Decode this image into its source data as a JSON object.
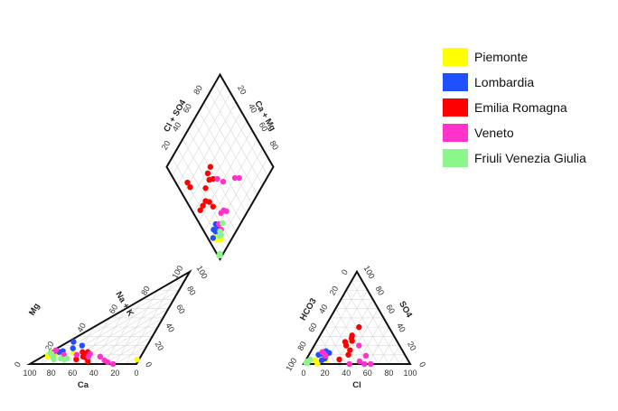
{
  "chart_data": {
    "type": "piper",
    "title": "",
    "legend": {
      "placement": "top-right",
      "entries": [
        {
          "name": "Piemonte",
          "color": "#ffff00"
        },
        {
          "name": "Lombardia",
          "color": "#1f4fff"
        },
        {
          "name": "Emilia Romagna",
          "color": "#ff0000"
        },
        {
          "name": "Veneto",
          "color": "#ff33cc"
        },
        {
          "name": "Friuli Venezia Giulia",
          "color": "#8cf58c"
        }
      ]
    },
    "cation_triangle": {
      "axes": {
        "bottom": "Ca",
        "left": "Mg",
        "right": "Na + K"
      },
      "bottom_ticks": [
        "100",
        "80",
        "60",
        "40",
        "20",
        "0"
      ],
      "left_ticks": [
        "0",
        "20",
        "40",
        "60",
        "80",
        "100"
      ],
      "right_ticks": [
        "100",
        "80",
        "60",
        "40",
        "20",
        "0"
      ]
    },
    "anion_triangle": {
      "axes": {
        "bottom": "Cl",
        "left": "HCO3",
        "right": "SO4"
      },
      "bottom_ticks": [
        "0",
        "20",
        "40",
        "60",
        "80",
        "100"
      ],
      "left_ticks": [
        "100",
        "80",
        "60",
        "40",
        "20",
        "0"
      ],
      "right_ticks": [
        "0",
        "20",
        "40",
        "60",
        "80",
        "100"
      ]
    },
    "diamond": {
      "axes": {
        "upper_left": "Cl + SO4",
        "upper_right": "Ca + Mg"
      },
      "upper_left_ticks": [
        "20",
        "40",
        "60",
        "80"
      ],
      "upper_right_ticks": [
        "20",
        "40",
        "60",
        "80"
      ]
    },
    "series": [
      {
        "region": "Piemonte",
        "color": "#ffff00",
        "cation_points": [
          [
            84,
            10
          ],
          [
            87,
            8
          ],
          [
            88,
            10
          ],
          [
            86,
            13
          ],
          [
            82,
            10
          ],
          [
            85,
            12
          ],
          [
            2,
            5
          ],
          [
            65,
            12
          ],
          [
            79,
            12
          ]
        ],
        "anion_points": [
          [
            9,
            4
          ],
          [
            14,
            9
          ],
          [
            18,
            7
          ],
          [
            12,
            10
          ],
          [
            19,
            4
          ],
          [
            13,
            0
          ],
          [
            15,
            12
          ]
        ],
        "diamond_points": [
          [
            15,
            15
          ],
          [
            12,
            12
          ],
          [
            17,
            9
          ],
          [
            19,
            13
          ],
          [
            10,
            11
          ],
          [
            14,
            7
          ],
          [
            18,
            15
          ]
        ]
      },
      {
        "region": "Lombardia",
        "color": "#1f4fff",
        "cation_points": [
          [
            79,
            13
          ],
          [
            71,
            24
          ],
          [
            68,
            17
          ],
          [
            61,
            20
          ],
          [
            85,
            11
          ],
          [
            76,
            14
          ]
        ],
        "anion_points": [
          [
            14,
            14
          ],
          [
            11,
            11
          ],
          [
            17,
            6
          ],
          [
            9,
            10
          ],
          [
            18,
            12
          ],
          [
            15,
            4
          ]
        ],
        "diamond_points": [
          [
            19,
            11
          ],
          [
            23,
            15
          ],
          [
            18,
            5
          ],
          [
            22,
            10
          ],
          [
            20,
            16
          ]
        ]
      },
      {
        "region": "Emilia Romagna",
        "color": "#ff0000",
        "cation_points": [
          [
            57,
            13
          ],
          [
            52,
            13
          ],
          [
            54,
            8
          ],
          [
            51,
            7
          ],
          [
            59,
            5
          ],
          [
            47,
            3
          ],
          [
            54,
            10
          ]
        ],
        "anion_points": [
          [
            32,
            40
          ],
          [
            30,
            31
          ],
          [
            31,
            28
          ],
          [
            33,
            25
          ],
          [
            27,
            24
          ],
          [
            30,
            20
          ],
          [
            36,
            15
          ],
          [
            37,
            10
          ],
          [
            31,
            5
          ]
        ],
        "diamond_points": [
          [
            72,
            11
          ],
          [
            67,
            11
          ],
          [
            41,
            21
          ],
          [
            52,
            25
          ],
          [
            45,
            8
          ],
          [
            45,
            13
          ],
          [
            45,
            18
          ],
          [
            35,
            22
          ],
          [
            53,
            33
          ],
          [
            58,
            35
          ],
          [
            59,
            41
          ],
          [
            50,
            37
          ]
        ]
      },
      {
        "region": "Veneto",
        "color": "#ff33cc",
        "cation_points": [
          [
            84,
            13
          ],
          [
            83,
            15
          ],
          [
            73,
            10
          ],
          [
            61,
            10
          ],
          [
            49,
            8
          ],
          [
            49,
            11
          ],
          [
            38,
            8
          ],
          [
            32,
            4
          ],
          [
            28,
            2
          ],
          [
            22,
            0
          ]
        ],
        "anion_points": [
          [
            14,
            11
          ],
          [
            16,
            9
          ],
          [
            11,
            13
          ],
          [
            42,
            20
          ],
          [
            54,
            9
          ],
          [
            51,
            3
          ],
          [
            43,
            0
          ],
          [
            57,
            0
          ],
          [
            63,
            0
          ]
        ],
        "diamond_points": [
          [
            15,
            17
          ],
          [
            20,
            18
          ],
          [
            24,
            26
          ],
          [
            23,
            30
          ],
          [
            20,
            32
          ],
          [
            46,
            41
          ],
          [
            39,
            45
          ],
          [
            30,
            58
          ],
          [
            26,
            62
          ]
        ]
      },
      {
        "region": "Friuli Venezia Giulia",
        "color": "#8cf58c",
        "cation_points": [
          [
            87,
            12
          ],
          [
            85,
            11
          ],
          [
            82,
            8
          ],
          [
            80,
            5
          ],
          [
            70,
            5
          ],
          [
            68,
            6
          ],
          [
            74,
            6
          ]
        ],
        "anion_points": [
          [
            3,
            3
          ],
          [
            3,
            1
          ],
          [
            2,
            3
          ],
          [
            2,
            1
          ],
          [
            4,
            5
          ]
        ],
        "diamond_points": [
          [
            3,
            3
          ],
          [
            2,
            2
          ],
          [
            3,
            1
          ],
          [
            13,
            12
          ],
          [
            12,
            14
          ],
          [
            17,
            22
          ],
          [
            15,
            15
          ]
        ]
      }
    ]
  }
}
